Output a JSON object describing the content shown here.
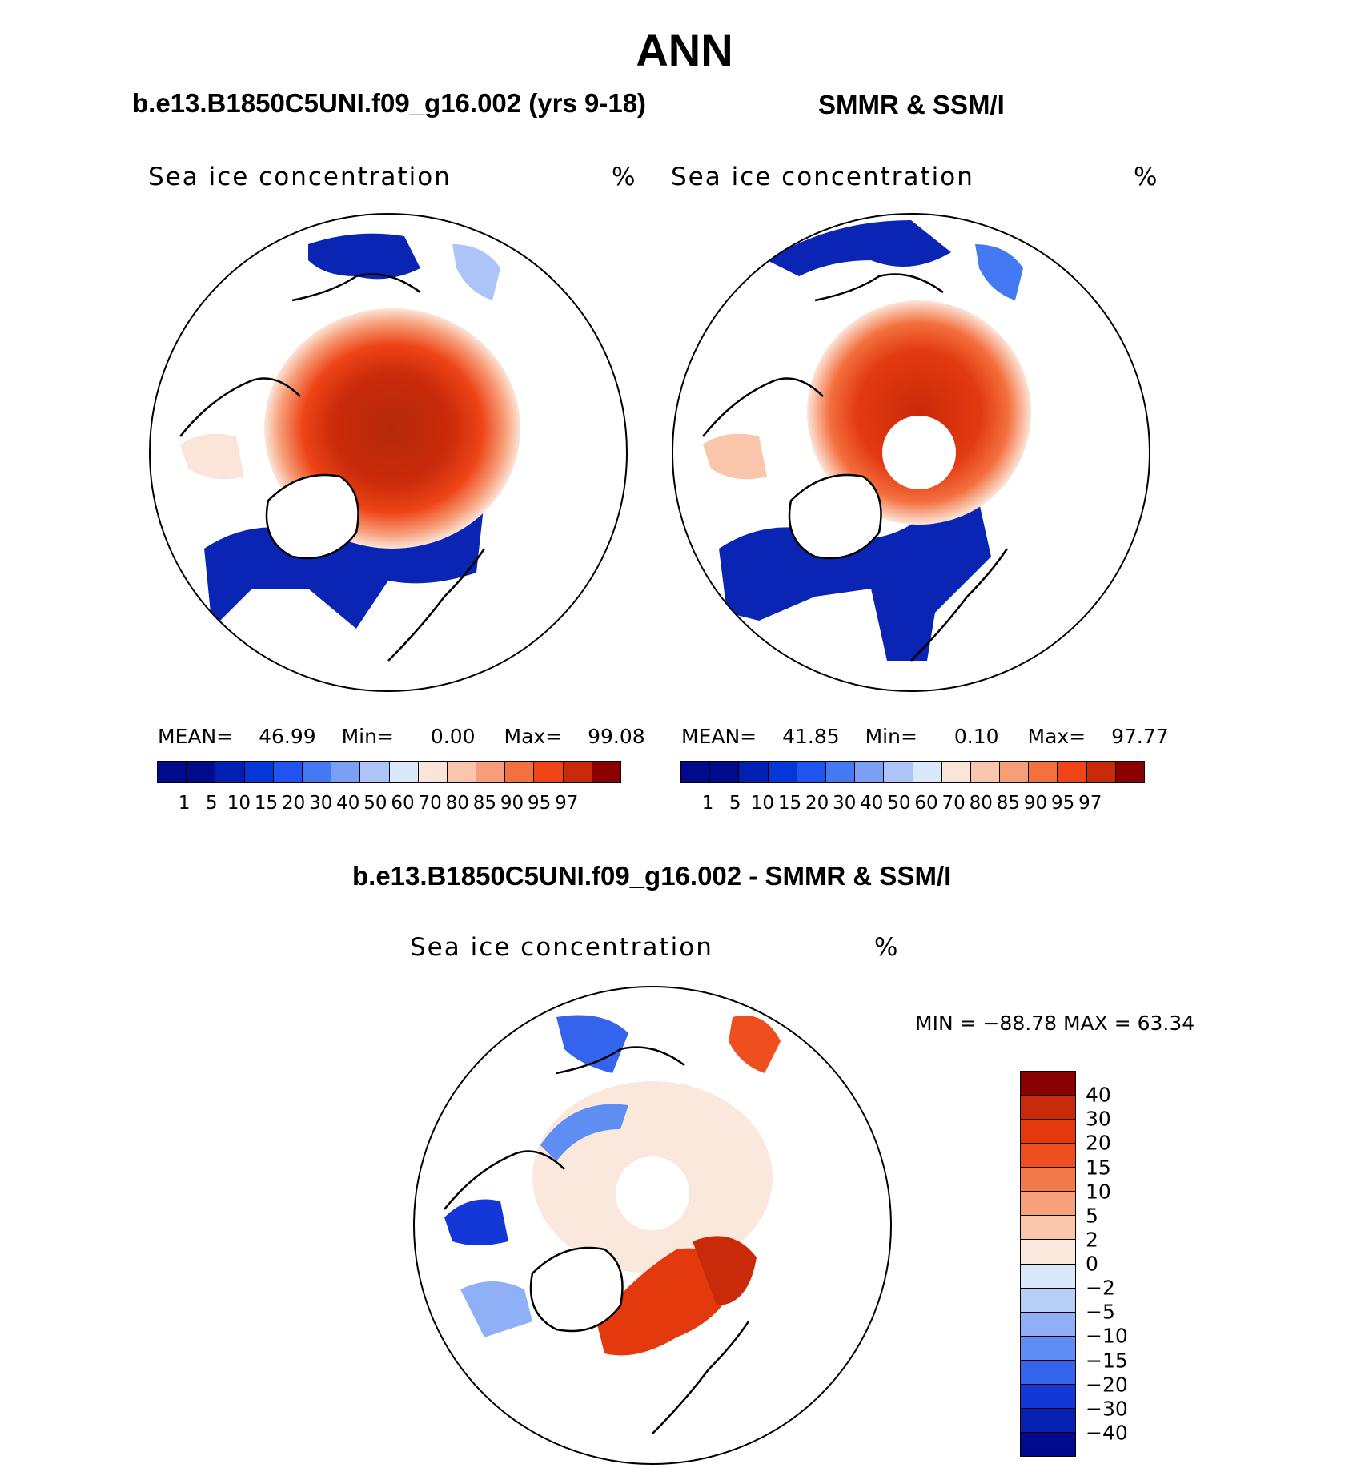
{
  "figure": {
    "title": "ANN"
  },
  "panels": {
    "model": {
      "title": "b.e13.B1850C5UNI.f09_g16.002 (yrs 9-18)",
      "field": "Sea ice concentration",
      "units": "%",
      "stats": {
        "mean_label": "MEAN=",
        "mean": "46.99",
        "min_label": "Min=",
        "min": "0.00",
        "max_label": "Max=",
        "max": "99.08"
      }
    },
    "obs": {
      "title": "SMMR & SSM/I",
      "field": "Sea ice concentration",
      "units": "%",
      "stats": {
        "mean_label": "MEAN=",
        "mean": "41.85",
        "min_label": "Min=",
        "min": "0.10",
        "max_label": "Max=",
        "max": "97.77"
      }
    },
    "diff": {
      "title": "b.e13.B1850C5UNI.f09_g16.002 - SMMR & SSM/I",
      "field": "Sea ice concentration",
      "units": "%",
      "stats": {
        "text": "MIN = −88.78 MAX =   63.34"
      }
    }
  },
  "colorbars": {
    "concentration": {
      "levels": [
        "1",
        "5",
        "10",
        "15",
        "20",
        "30",
        "40",
        "50",
        "60",
        "70",
        "80",
        "85",
        "90",
        "95",
        "97"
      ],
      "colors": [
        "#000a8c",
        "#0020b4",
        "#0437d8",
        "#1f55ee",
        "#4479f3",
        "#7c9ff6",
        "#adc4f8",
        "#d9e8fa",
        "#fbe5d8",
        "#f9c6ab",
        "#f79d77",
        "#f4703f",
        "#ee4417",
        "#c92a0a",
        "#8a0000"
      ]
    },
    "difference": {
      "levels": [
        "40",
        "30",
        "20",
        "15",
        "10",
        "5",
        "2",
        "0",
        "−2",
        "−5",
        "−10",
        "−15",
        "−20",
        "−30",
        "−40"
      ],
      "colors": [
        "#8a0000",
        "#c92a0a",
        "#e3390d",
        "#ef4f1f",
        "#f37a4a",
        "#f7a17d",
        "#fac7ad",
        "#fbe8dc",
        "#d9e8fa",
        "#b8d0f8",
        "#8fb0f6",
        "#5f8ef3",
        "#3564ec",
        "#1437d8",
        "#0421b4",
        "#000a8c"
      ]
    }
  }
}
